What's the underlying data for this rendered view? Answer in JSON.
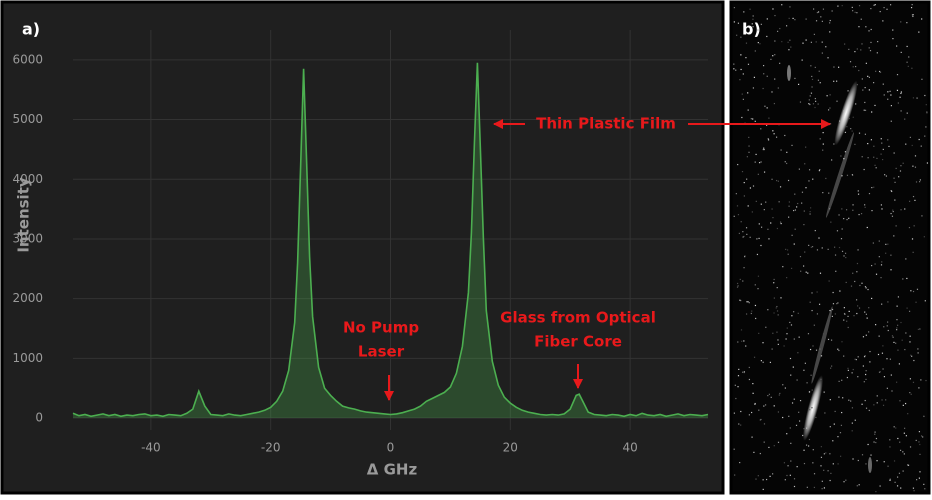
{
  "chart_data": {
    "type": "area-line",
    "panel_label": "a)",
    "image_panel_label": "b)",
    "x_label": "Δ GHz",
    "y_label": "Intensity",
    "xlim": [
      -53,
      53
    ],
    "ylim": [
      -200,
      6500
    ],
    "xticks": [
      -40,
      -20,
      0,
      20,
      40
    ],
    "yticks": [
      0,
      1000,
      2000,
      3000,
      4000,
      5000,
      6000
    ],
    "grid": true,
    "series": [
      {
        "color": "#4caf50",
        "x": [
          -53,
          -52,
          -51,
          -50,
          -49,
          -48,
          -47,
          -46,
          -45,
          -44,
          -43,
          -42,
          -41,
          -40,
          -39,
          -38,
          -37,
          -36,
          -35,
          -34,
          -33,
          -32,
          -31,
          -30,
          -29,
          -28,
          -27,
          -26,
          -25,
          -24,
          -23,
          -22,
          -21,
          -20,
          -19,
          -18,
          -17,
          -16,
          -15.5,
          -15,
          -14.5,
          -14,
          -13.5,
          -13,
          -12,
          -11,
          -10,
          -9,
          -8,
          -7,
          -6,
          -5,
          -4,
          -3,
          -2,
          -1,
          0,
          1,
          2,
          3,
          4,
          5,
          6,
          7,
          8,
          9,
          10,
          11,
          12,
          13,
          13.5,
          14,
          14.5,
          15,
          15.5,
          16,
          17,
          18,
          19,
          20,
          21,
          22,
          23,
          24,
          25,
          26,
          27,
          28,
          29,
          30,
          31,
          31.5,
          32,
          33,
          34,
          35,
          36,
          37,
          38,
          39,
          40,
          41,
          42,
          43,
          44,
          45,
          46,
          47,
          48,
          49,
          50,
          51,
          52,
          53
        ],
        "values": [
          80,
          40,
          60,
          30,
          50,
          70,
          40,
          60,
          30,
          50,
          40,
          60,
          70,
          40,
          50,
          30,
          60,
          50,
          40,
          80,
          150,
          450,
          200,
          60,
          50,
          40,
          70,
          50,
          40,
          60,
          80,
          100,
          130,
          180,
          280,
          450,
          800,
          1600,
          2600,
          4200,
          5850,
          4300,
          2700,
          1700,
          850,
          500,
          380,
          280,
          200,
          170,
          150,
          120,
          100,
          90,
          80,
          70,
          60,
          70,
          90,
          120,
          150,
          200,
          280,
          330,
          380,
          430,
          520,
          750,
          1200,
          2100,
          3100,
          4600,
          5950,
          4500,
          3000,
          1800,
          950,
          550,
          350,
          250,
          180,
          130,
          100,
          80,
          60,
          50,
          60,
          50,
          70,
          150,
          380,
          400,
          300,
          100,
          60,
          50,
          40,
          60,
          50,
          30,
          60,
          40,
          80,
          50,
          40,
          60,
          30,
          50,
          70,
          40,
          60,
          50,
          40,
          60
        ]
      }
    ],
    "annotations": [
      {
        "lines": [
          "Thin Plastic Film"
        ]
      },
      {
        "lines": [
          "No Pump",
          "Laser"
        ]
      },
      {
        "lines": [
          "Glass from Optical",
          "Fiber Core"
        ]
      }
    ]
  }
}
